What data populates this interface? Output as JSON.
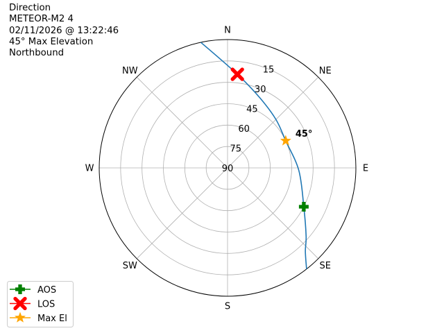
{
  "title_lines": [
    "Direction",
    "METEOR-M2 4",
    "02/11/2026 @ 13:22:46",
    "45° Max Elevation",
    "Northbound"
  ],
  "chart_data": {
    "type": "polar-line",
    "angular_axis": {
      "direction": "clockwise",
      "zero": "north",
      "tick_labels": [
        "N",
        "NE",
        "E",
        "SE",
        "S",
        "SW",
        "W",
        "NW"
      ]
    },
    "radial_axis": {
      "quantity": "elevation",
      "range": [
        90,
        0
      ],
      "ticks": [
        15,
        30,
        45,
        60,
        75,
        90
      ],
      "tick_labels": [
        "15",
        "30",
        "45",
        "60",
        "75",
        "90"
      ]
    },
    "grid": true,
    "track": {
      "color": "#1f77b4",
      "points": [
        {
          "az": 348,
          "el": 0
        },
        {
          "az": 6,
          "el": 24
        },
        {
          "az": 25,
          "el": 36
        },
        {
          "az": 45,
          "el": 42
        },
        {
          "az": 65,
          "el": 45
        },
        {
          "az": 92,
          "el": 40
        },
        {
          "az": 117,
          "el": 30
        },
        {
          "az": 131,
          "el": 17
        },
        {
          "az": 137,
          "el": 10
        },
        {
          "az": 142,
          "el": 0
        }
      ]
    },
    "markers": [
      {
        "name": "AOS",
        "az": 117,
        "el": 30,
        "color": "#008000",
        "symbol": "plus"
      },
      {
        "name": "LOS",
        "az": 6,
        "el": 24,
        "color": "#ff0000",
        "symbol": "x"
      },
      {
        "name": "Max El",
        "az": 65,
        "el": 45,
        "color": "#ffa500",
        "symbol": "star"
      }
    ],
    "annotation": {
      "text": "45°",
      "az": 65,
      "el": 45
    },
    "legend": {
      "position": "bottom-left",
      "entries": [
        "AOS",
        "LOS",
        "Max El"
      ]
    }
  }
}
